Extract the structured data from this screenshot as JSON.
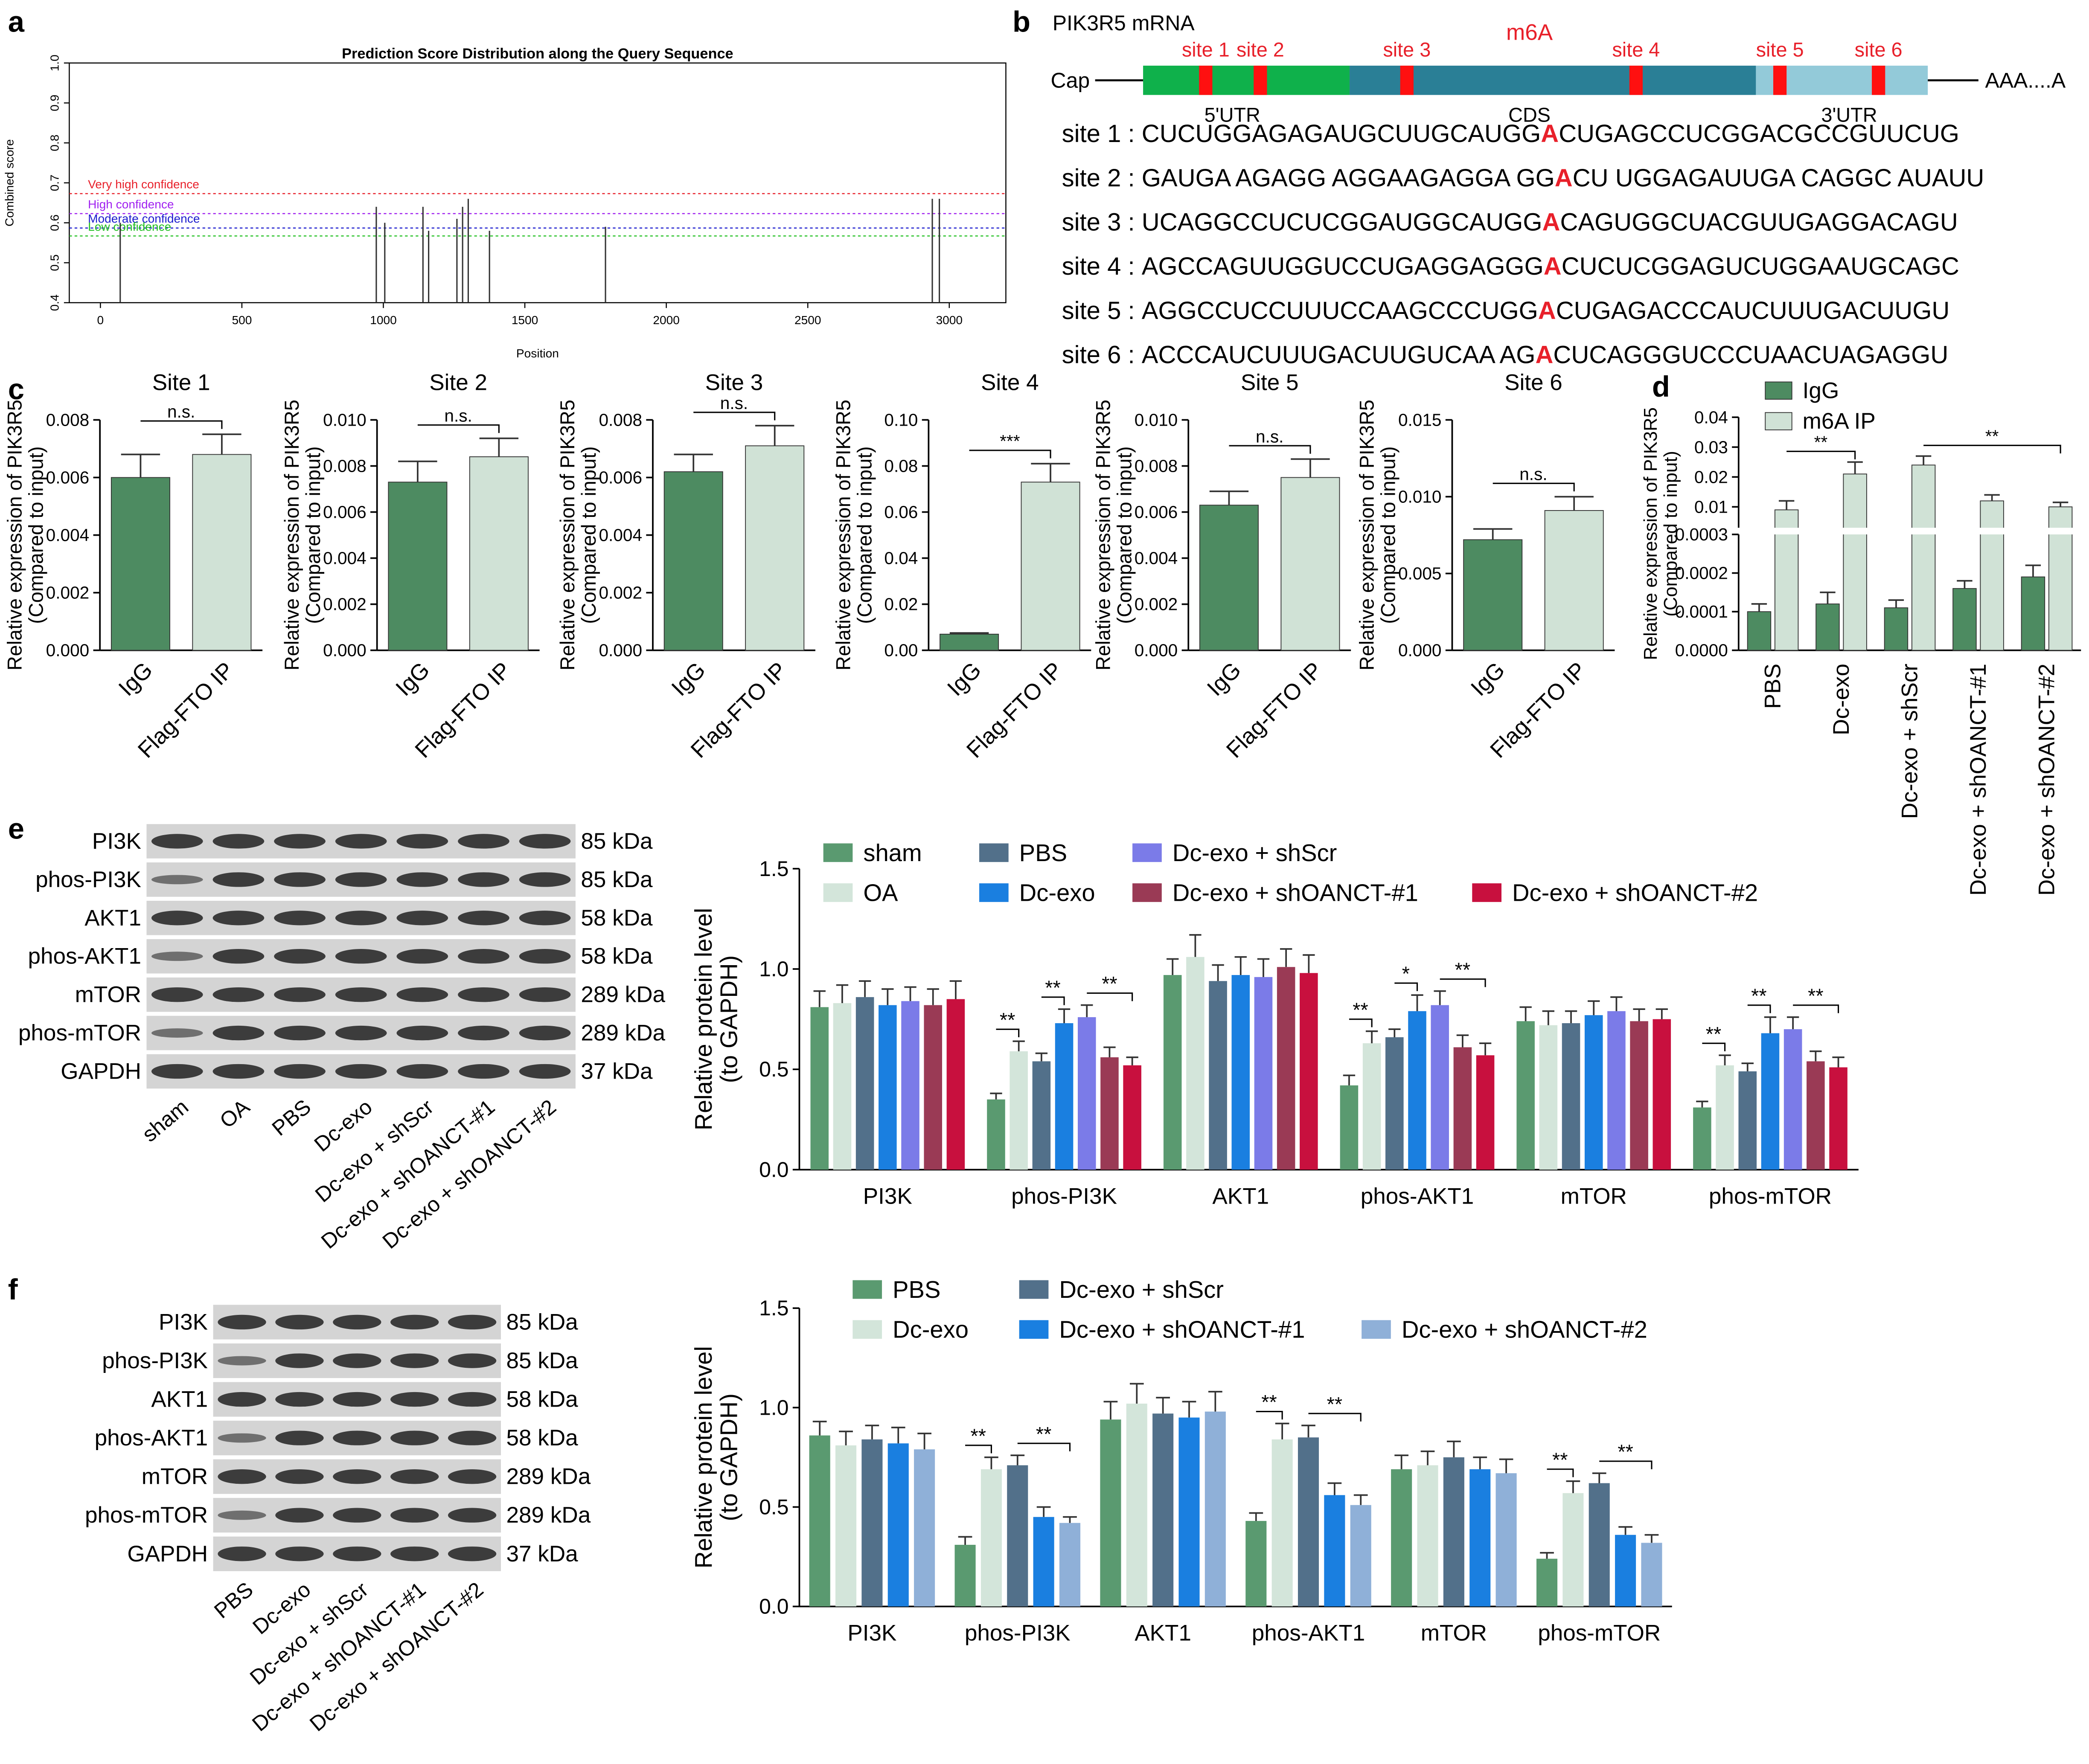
{
  "panel_labels": [
    "a",
    "b",
    "c",
    "d",
    "e",
    "f"
  ],
  "mrna": {
    "title": "PIK3R5 mRNA",
    "modification": "m6A",
    "cap": "Cap",
    "tail": "AAA....A",
    "regions": [
      "5'UTR",
      "CDS",
      "3'UTR"
    ],
    "sites": [
      "site 1",
      "site 2",
      "site 3",
      "site 4",
      "site 5",
      "site 6"
    ],
    "sequences": [
      {
        "label": "site 1 :",
        "pre": "CUCUGGAGAGAUGCUUGCAUGG",
        "mod": "A",
        "post": "CUGAGCCUCGGACGCCGUUCUG"
      },
      {
        "label": "site 2 :",
        "pre": "GAUGA AGAGG AGGAAGAGGA GG",
        "mod": "A",
        "post": "CU UGGAGAUUGA CAGGC AUAUU"
      },
      {
        "label": "site 3 :",
        "pre": "UCAGGCCUCUCGGAUGGCAUGG",
        "mod": "A",
        "post": "CAGUGGCUACGUUGAGGACAGU"
      },
      {
        "label": "site 4 :",
        "pre": "AGCCAGUUGGUCCUGAGGAGGG",
        "mod": "A",
        "post": "CUCUCGGAGUCUGGAAUGCAGC"
      },
      {
        "label": "site 5 :",
        "pre": "AGGCCUCCUUUCCAAGCCCUGG",
        "mod": "A",
        "post": "CUGAGACCCAUCUUUGACUUGU"
      },
      {
        "label": "site 6 :",
        "pre": "ACCCAUCUUUGACUUGUCAA AG",
        "mod": "A",
        "post": "CUCAGGGUCCCUAACUAGAGGU"
      }
    ]
  },
  "blots": [
    {
      "proteins": [
        "PI3K",
        "phos-PI3K",
        "AKT1",
        "phos-AKT1",
        "mTOR",
        "phos-mTOR",
        "GAPDH"
      ],
      "sizes": [
        "85 kDa",
        "85 kDa",
        "58 kDa",
        "58 kDa",
        "289 kDa",
        "289 kDa",
        "37 kDa"
      ],
      "lanes": [
        "sham",
        "OA",
        "PBS",
        "Dc-exo",
        "Dc-exo + shScr",
        "Dc-exo + shOANCT-#1",
        "Dc-exo + shOANCT-#2"
      ]
    },
    {
      "proteins": [
        "PI3K",
        "phos-PI3K",
        "AKT1",
        "phos-AKT1",
        "mTOR",
        "phos-mTOR",
        "GAPDH"
      ],
      "sizes": [
        "85 kDa",
        "85 kDa",
        "58 kDa",
        "58 kDa",
        "289 kDa",
        "289 kDa",
        "37 kDa"
      ],
      "lanes": [
        "PBS",
        "Dc-exo",
        "Dc-exo + shScr",
        "Dc-exo + shOANCT-#1",
        "Dc-exo + shOANCT-#2"
      ]
    }
  ],
  "chart_data": [
    {
      "type": "stem",
      "title": "Prediction Score Distribution along the Query Sequence",
      "xlabel": "Position",
      "ylabel": "Combined score",
      "x": [
        70,
        975,
        1005,
        1140,
        1160,
        1260,
        1280,
        1300,
        1375,
        1785,
        2940,
        2965
      ],
      "values": [
        0.6,
        0.64,
        0.6,
        0.64,
        0.58,
        0.61,
        0.64,
        0.66,
        0.58,
        0.59,
        0.66,
        0.66
      ],
      "color": "#333333",
      "xlim": [
        -110,
        3200
      ],
      "xticks": [
        0,
        500,
        1000,
        1500,
        2000,
        2500,
        3000
      ],
      "ylim": [
        0.4,
        1.0
      ],
      "yticks": [
        0.4,
        0.5,
        0.6,
        0.7,
        0.8,
        0.9,
        {
          "value": 1,
          "label": "1.0"
        }
      ],
      "thresholds": [
        {
          "label": "Very high confidence",
          "value": 0.673,
          "color": "#e8202a"
        },
        {
          "label": "High confidence",
          "value": 0.623,
          "color": "#a020f0"
        },
        {
          "label": "Moderate confidence",
          "value": 0.587,
          "color": "#1a1acd"
        },
        {
          "label": "Low confidence",
          "value": 0.567,
          "color": "#22c022"
        }
      ]
    },
    {
      "type": "bar",
      "title": "Site 1",
      "categories": [
        "IgG",
        "Flag-FTO IP"
      ],
      "values": [
        0.006,
        0.0068
      ],
      "errors": [
        0.0008,
        0.0007
      ],
      "colors": [
        "#4d8b61",
        "#d0e2d6"
      ],
      "ylabel": [
        "Relative expression of PIK3R5",
        "(Compared to input)"
      ],
      "ylim": [
        0,
        0.008
      ],
      "yticks": [
        {
          "value": 0,
          "label": "0.000"
        },
        0.002,
        0.004,
        0.006,
        0.008
      ],
      "significance": "n.s."
    },
    {
      "type": "bar",
      "title": "Site 2",
      "categories": [
        "IgG",
        "Flag-FTO IP"
      ],
      "values": [
        0.0073,
        0.0084
      ],
      "errors": [
        0.0009,
        0.0008
      ],
      "colors": [
        "#4d8b61",
        "#d0e2d6"
      ],
      "ylabel": [
        "Relative expression of PIK3R5",
        "(Compared to input)"
      ],
      "ylim": [
        0,
        0.01
      ],
      "yticks": [
        {
          "value": 0,
          "label": "0.000"
        },
        0.002,
        0.004,
        0.006,
        0.008,
        {
          "value": 0.01,
          "label": "0.010"
        }
      ],
      "significance": "n.s."
    },
    {
      "type": "bar",
      "title": "Site 3",
      "categories": [
        "IgG",
        "Flag-FTO IP"
      ],
      "values": [
        0.0062,
        0.0071
      ],
      "errors": [
        0.0006,
        0.0007
      ],
      "colors": [
        "#4d8b61",
        "#d0e2d6"
      ],
      "ylabel": [
        "Relative expression of PIK3R5",
        "(Compared to input)"
      ],
      "ylim": [
        0,
        0.008
      ],
      "yticks": [
        {
          "value": 0,
          "label": "0.000"
        },
        0.002,
        0.004,
        0.006,
        0.008
      ],
      "significance": "n.s."
    },
    {
      "type": "bar",
      "title": "Site 4",
      "categories": [
        "IgG",
        "Flag-FTO IP"
      ],
      "values": [
        0.007,
        0.073
      ],
      "errors": [
        0.0005,
        0.008
      ],
      "colors": [
        "#4d8b61",
        "#d0e2d6"
      ],
      "ylabel": [
        "Relative expression of PIK3R5",
        "(Compared to input)"
      ],
      "ylim": [
        0,
        0.1
      ],
      "yticks": [
        {
          "value": 0,
          "label": "0.00"
        },
        0.02,
        0.04,
        0.06,
        0.08,
        {
          "value": 0.1,
          "label": "0.10"
        }
      ],
      "significance": "***"
    },
    {
      "type": "bar",
      "title": "Site 5",
      "categories": [
        "IgG",
        "Flag-FTO IP"
      ],
      "values": [
        0.0063,
        0.0075
      ],
      "errors": [
        0.0006,
        0.0008
      ],
      "colors": [
        "#4d8b61",
        "#d0e2d6"
      ],
      "ylabel": [
        "Relative expression of PIK3R5",
        "(Compared to input)"
      ],
      "ylim": [
        0,
        0.01
      ],
      "yticks": [
        {
          "value": 0,
          "label": "0.000"
        },
        0.002,
        0.004,
        0.006,
        0.008,
        {
          "value": 0.01,
          "label": "0.010"
        }
      ],
      "significance": "n.s."
    },
    {
      "type": "bar",
      "title": "Site 6",
      "categories": [
        "IgG",
        "Flag-FTO IP"
      ],
      "values": [
        0.0072,
        0.0091
      ],
      "errors": [
        0.0007,
        0.0009
      ],
      "colors": [
        "#4d8b61",
        "#d0e2d6"
      ],
      "ylabel": [
        "Relative expression of PIK3R5",
        "(Compared to input)"
      ],
      "ylim": [
        0,
        0.015
      ],
      "yticks": [
        {
          "value": 0,
          "label": "0.000"
        },
        0.005,
        {
          "value": 0.01,
          "label": "0.010"
        },
        0.015
      ],
      "significance": "n.s."
    },
    {
      "type": "broken_bar",
      "categories": [
        "PBS",
        "Dc-exo",
        "Dc-exo + shScr",
        "Dc-exo + shOANCT-#1",
        "Dc-exo + shOANCT-#2"
      ],
      "series": [
        {
          "name": "IgG",
          "color": "#4d8b61",
          "values": [
            0.0001,
            0.00012,
            0.00011,
            0.00016,
            0.00019
          ],
          "errors": [
            2e-05,
            3e-05,
            2e-05,
            2e-05,
            3e-05
          ]
        },
        {
          "name": "m6A IP",
          "color": "#d0e2d6",
          "values": [
            0.009,
            0.021,
            0.024,
            0.012,
            0.01
          ],
          "errors": [
            0.003,
            0.004,
            0.003,
            0.002,
            0.0015
          ]
        }
      ],
      "ylabel": [
        "Relative expression of PIK3R5",
        "(Compared to input)"
      ],
      "ylim": [
        0,
        0.0003
      ],
      "yticks": [
        {
          "value": 0,
          "label": "0.0000"
        },
        0.0001,
        0.0002,
        0.0003
      ],
      "ylim_upper": [
        0.003,
        0.04
      ],
      "yticks_upper": [
        0.01,
        0.02,
        0.03,
        0.04
      ],
      "legend": "top-left",
      "significance": [
        "**",
        "**"
      ]
    },
    {
      "type": "grouped_bar",
      "categories": [
        "PI3K",
        "phos-PI3K",
        "AKT1",
        "phos-AKT1",
        "mTOR",
        "phos-mTOR"
      ],
      "series": [
        {
          "name": "sham",
          "color": "#5a9a70",
          "values": [
            0.81,
            0.35,
            0.97,
            0.42,
            0.74,
            0.31
          ],
          "errors": [
            0.08,
            0.03,
            0.08,
            0.05,
            0.07,
            0.03
          ]
        },
        {
          "name": "OA",
          "color": "#d3e5da",
          "values": [
            0.83,
            0.59,
            1.06,
            0.63,
            0.72,
            0.52
          ],
          "errors": [
            0.09,
            0.05,
            0.11,
            0.06,
            0.07,
            0.05
          ]
        },
        {
          "name": "PBS",
          "color": "#52708a",
          "values": [
            0.86,
            0.54,
            0.94,
            0.66,
            0.73,
            0.49
          ],
          "errors": [
            0.08,
            0.04,
            0.08,
            0.04,
            0.06,
            0.04
          ]
        },
        {
          "name": "Dc-exo",
          "color": "#1a7fe0",
          "values": [
            0.82,
            0.73,
            0.97,
            0.79,
            0.77,
            0.68
          ],
          "errors": [
            0.08,
            0.07,
            0.09,
            0.08,
            0.07,
            0.08
          ]
        },
        {
          "name": "Dc-exo + shScr",
          "color": "#7b7be8",
          "values": [
            0.84,
            0.76,
            0.96,
            0.82,
            0.79,
            0.7
          ],
          "errors": [
            0.07,
            0.06,
            0.09,
            0.07,
            0.07,
            0.06
          ]
        },
        {
          "name": "Dc-exo + shOANCT-#1",
          "color": "#9a3a55",
          "values": [
            0.82,
            0.56,
            1.01,
            0.61,
            0.74,
            0.54
          ],
          "errors": [
            0.08,
            0.05,
            0.09,
            0.06,
            0.06,
            0.05
          ]
        },
        {
          "name": "Dc-exo + shOANCT-#2",
          "color": "#c8103e",
          "values": [
            0.85,
            0.52,
            0.98,
            0.57,
            0.75,
            0.51
          ],
          "errors": [
            0.09,
            0.04,
            0.09,
            0.06,
            0.05,
            0.05
          ]
        }
      ],
      "ylabel": [
        "Relative protein level",
        "(to GAPDH)"
      ],
      "ylim": [
        0,
        1.5
      ],
      "yticks": [
        {
          "value": 0,
          "label": "0.0"
        },
        0.5,
        {
          "value": 1,
          "label": "1.0"
        },
        1.5
      ],
      "legend": "top-left",
      "significance": [
        null,
        [
          "**",
          "**",
          "**"
        ],
        null,
        [
          "**",
          "*",
          "**"
        ],
        null,
        [
          "**",
          "**",
          "**"
        ]
      ]
    },
    {
      "type": "grouped_bar",
      "categories": [
        "PI3K",
        "phos-PI3K",
        "AKT1",
        "phos-AKT1",
        "mTOR",
        "phos-mTOR"
      ],
      "series": [
        {
          "name": "PBS",
          "color": "#5a9a70",
          "values": [
            0.86,
            0.31,
            0.94,
            0.43,
            0.69,
            0.24
          ],
          "errors": [
            0.07,
            0.04,
            0.09,
            0.04,
            0.07,
            0.03
          ]
        },
        {
          "name": "Dc-exo",
          "color": "#d3e5da",
          "values": [
            0.81,
            0.69,
            1.02,
            0.84,
            0.71,
            0.57
          ],
          "errors": [
            0.07,
            0.06,
            0.1,
            0.08,
            0.07,
            0.06
          ]
        },
        {
          "name": "Dc-exo + shScr",
          "color": "#52708a",
          "values": [
            0.84,
            0.71,
            0.97,
            0.85,
            0.75,
            0.62
          ],
          "errors": [
            0.07,
            0.05,
            0.08,
            0.06,
            0.08,
            0.05
          ]
        },
        {
          "name": "Dc-exo + shOANCT-#1",
          "color": "#1a7fe0",
          "values": [
            0.82,
            0.45,
            0.95,
            0.56,
            0.69,
            0.36
          ],
          "errors": [
            0.08,
            0.05,
            0.08,
            0.06,
            0.06,
            0.04
          ]
        },
        {
          "name": "Dc-exo + shOANCT-#2",
          "color": "#8fb0d8",
          "values": [
            0.79,
            0.42,
            0.98,
            0.51,
            0.67,
            0.32
          ],
          "errors": [
            0.08,
            0.03,
            0.1,
            0.05,
            0.07,
            0.04
          ]
        }
      ],
      "ylabel": [
        "Relative protein level",
        "(to GAPDH)"
      ],
      "ylim": [
        0,
        1.5
      ],
      "yticks": [
        {
          "value": 0,
          "label": "0.0"
        },
        0.5,
        {
          "value": 1,
          "label": "1.0"
        },
        1.5
      ],
      "legend": "top-left",
      "significance": [
        null,
        [
          "**",
          "**"
        ],
        null,
        [
          "**",
          "**"
        ],
        null,
        [
          "**",
          "**"
        ]
      ]
    }
  ]
}
